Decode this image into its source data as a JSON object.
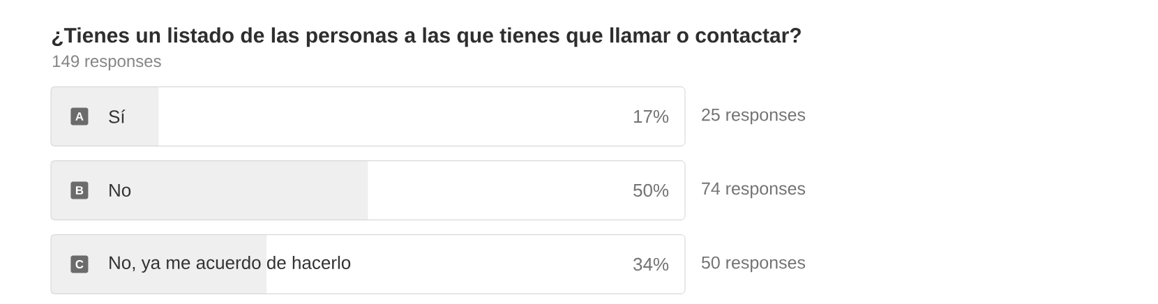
{
  "chart_data": {
    "type": "bar",
    "orientation": "horizontal",
    "title": "¿Tienes un listado de las personas a las que tienes que llamar o contactar?",
    "subtitle": "149 responses",
    "categories": [
      "Sí",
      "No",
      "No, ya me acuerdo de hacerlo"
    ],
    "values": [
      17,
      50,
      34
    ],
    "value_labels": [
      "17%",
      "50%",
      "34%"
    ],
    "color": "#efefef",
    "xlim": [
      0,
      100
    ],
    "annotations": [
      "A",
      "B",
      "C",
      "25 responses",
      "74 responses",
      "50 responses"
    ]
  }
}
